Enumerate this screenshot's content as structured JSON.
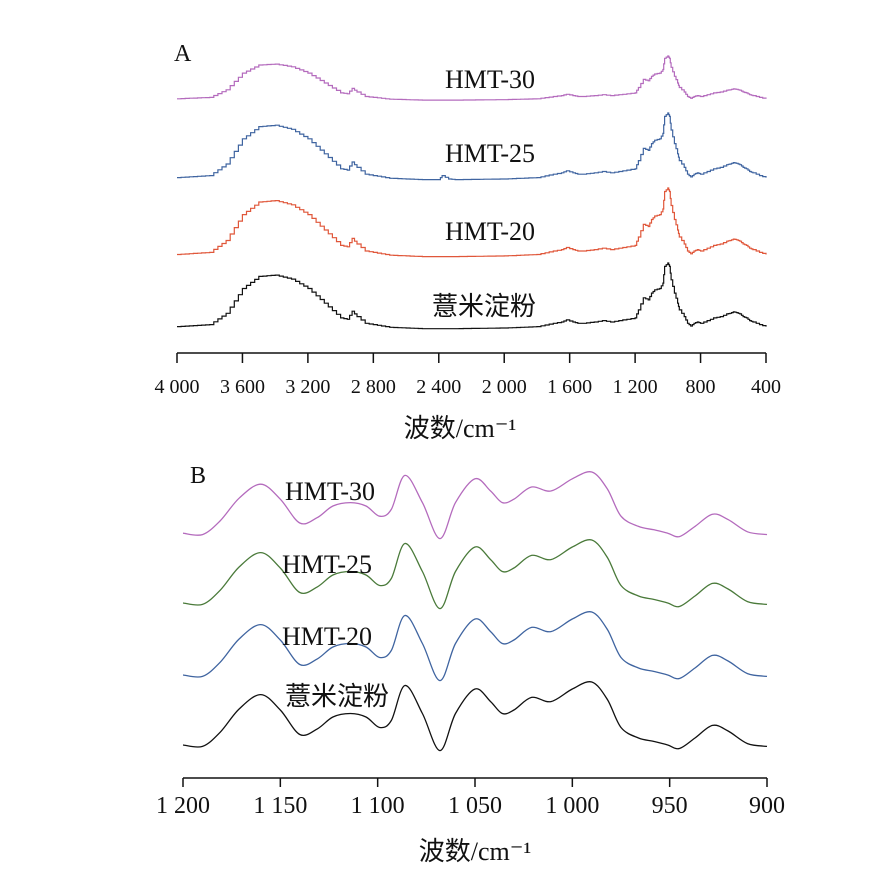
{
  "chart_data": [
    {
      "panel_label": "A",
      "type": "line",
      "xlabel": "波数/cm⁻¹",
      "xlim": [
        4000,
        400
      ],
      "ticks": [
        4000,
        3600,
        3200,
        2800,
        2400,
        2000,
        1600,
        1200,
        800,
        400
      ],
      "tick_labels": [
        "4 000",
        "3 600",
        "3 200",
        "2 800",
        "2 400",
        "2 000",
        "1 600",
        "1 200",
        "800",
        "400"
      ],
      "stepped_lines": true,
      "series": [
        {
          "name": "HMT-30",
          "color": "#b46bbd",
          "x": [
            4000,
            3800,
            3700,
            3600,
            3500,
            3400,
            3300,
            3200,
            3100,
            3000,
            2960,
            2930,
            2900,
            2850,
            2700,
            2500,
            2300,
            2000,
            1800,
            1700,
            1650,
            1620,
            1580,
            1550,
            1520,
            1450,
            1400,
            1350,
            1250,
            1200,
            1180,
            1150,
            1120,
            1100,
            1080,
            1050,
            1030,
            1020,
            1000,
            990,
            980,
            960,
            940,
            930,
            900,
            880,
            860,
            840,
            820,
            800,
            760,
            720,
            680,
            640,
            620,
            600,
            580,
            560,
            540,
            520,
            500,
            480,
            440,
            400
          ],
          "y": [
            0.05,
            0.08,
            0.25,
            0.62,
            0.8,
            0.82,
            0.76,
            0.62,
            0.4,
            0.18,
            0.16,
            0.28,
            0.2,
            0.1,
            0.04,
            0.02,
            0.02,
            0.03,
            0.05,
            0.1,
            0.12,
            0.15,
            0.12,
            0.1,
            0.1,
            0.12,
            0.14,
            0.12,
            0.16,
            0.18,
            0.3,
            0.48,
            0.45,
            0.55,
            0.6,
            0.62,
            0.7,
            0.95,
            1.0,
            0.95,
            0.75,
            0.55,
            0.4,
            0.3,
            0.2,
            0.1,
            0.06,
            0.1,
            0.12,
            0.1,
            0.14,
            0.18,
            0.2,
            0.24,
            0.25,
            0.27,
            0.26,
            0.24,
            0.2,
            0.18,
            0.14,
            0.12,
            0.08,
            0.05
          ]
        },
        {
          "name": "HMT-25",
          "color": "#3f64a0",
          "x": [
            4000,
            3800,
            3700,
            3600,
            3500,
            3400,
            3300,
            3200,
            3100,
            3000,
            2960,
            2930,
            2900,
            2850,
            2700,
            2500,
            2400,
            2380,
            2340,
            2300,
            2000,
            1800,
            1700,
            1650,
            1620,
            1580,
            1550,
            1520,
            1450,
            1400,
            1350,
            1250,
            1200,
            1180,
            1150,
            1120,
            1100,
            1080,
            1050,
            1030,
            1020,
            1000,
            990,
            980,
            960,
            940,
            930,
            900,
            880,
            860,
            840,
            820,
            800,
            760,
            720,
            680,
            640,
            620,
            600,
            580,
            560,
            540,
            520,
            500,
            480,
            440,
            400
          ],
          "y": [
            0.05,
            0.08,
            0.25,
            0.62,
            0.8,
            0.82,
            0.76,
            0.62,
            0.4,
            0.18,
            0.16,
            0.28,
            0.2,
            0.1,
            0.04,
            0.02,
            0.02,
            0.08,
            0.03,
            0.02,
            0.03,
            0.05,
            0.1,
            0.12,
            0.15,
            0.12,
            0.1,
            0.1,
            0.12,
            0.14,
            0.12,
            0.16,
            0.18,
            0.3,
            0.48,
            0.45,
            0.55,
            0.6,
            0.62,
            0.7,
            0.95,
            1.0,
            0.95,
            0.75,
            0.55,
            0.4,
            0.3,
            0.2,
            0.1,
            0.06,
            0.1,
            0.12,
            0.1,
            0.14,
            0.18,
            0.2,
            0.24,
            0.25,
            0.27,
            0.26,
            0.24,
            0.2,
            0.18,
            0.14,
            0.12,
            0.08,
            0.05
          ]
        },
        {
          "name": "HMT-20",
          "color": "#e0573a",
          "x": [
            4000,
            3800,
            3700,
            3600,
            3500,
            3400,
            3300,
            3200,
            3100,
            3000,
            2960,
            2930,
            2900,
            2850,
            2700,
            2500,
            2300,
            2000,
            1800,
            1700,
            1650,
            1620,
            1580,
            1550,
            1520,
            1450,
            1400,
            1350,
            1250,
            1200,
            1180,
            1150,
            1120,
            1100,
            1080,
            1050,
            1030,
            1020,
            1000,
            990,
            980,
            960,
            940,
            930,
            900,
            880,
            860,
            840,
            820,
            800,
            760,
            720,
            680,
            640,
            620,
            600,
            580,
            560,
            540,
            520,
            500,
            480,
            440,
            400
          ],
          "y": [
            0.05,
            0.08,
            0.25,
            0.62,
            0.8,
            0.82,
            0.76,
            0.62,
            0.4,
            0.18,
            0.16,
            0.28,
            0.2,
            0.1,
            0.04,
            0.02,
            0.02,
            0.03,
            0.05,
            0.1,
            0.12,
            0.15,
            0.12,
            0.1,
            0.1,
            0.12,
            0.14,
            0.12,
            0.16,
            0.18,
            0.3,
            0.48,
            0.45,
            0.55,
            0.6,
            0.62,
            0.7,
            0.95,
            1.0,
            0.95,
            0.75,
            0.55,
            0.4,
            0.3,
            0.2,
            0.1,
            0.06,
            0.1,
            0.12,
            0.1,
            0.14,
            0.18,
            0.2,
            0.24,
            0.25,
            0.27,
            0.26,
            0.24,
            0.2,
            0.18,
            0.14,
            0.12,
            0.08,
            0.05
          ]
        },
        {
          "name": "薏米淀粉",
          "color": "#111111",
          "x": [
            4000,
            3800,
            3700,
            3600,
            3500,
            3400,
            3300,
            3200,
            3100,
            3000,
            2960,
            2930,
            2900,
            2850,
            2700,
            2500,
            2300,
            2000,
            1800,
            1700,
            1650,
            1620,
            1580,
            1550,
            1520,
            1450,
            1400,
            1350,
            1250,
            1200,
            1180,
            1150,
            1120,
            1100,
            1080,
            1050,
            1030,
            1020,
            1000,
            990,
            980,
            960,
            940,
            930,
            900,
            880,
            860,
            840,
            820,
            800,
            760,
            720,
            680,
            640,
            620,
            600,
            580,
            560,
            540,
            520,
            500,
            480,
            440,
            400
          ],
          "y": [
            0.05,
            0.08,
            0.25,
            0.62,
            0.8,
            0.82,
            0.76,
            0.62,
            0.4,
            0.18,
            0.16,
            0.28,
            0.2,
            0.1,
            0.04,
            0.02,
            0.02,
            0.03,
            0.05,
            0.1,
            0.12,
            0.15,
            0.12,
            0.1,
            0.1,
            0.12,
            0.14,
            0.12,
            0.16,
            0.18,
            0.3,
            0.48,
            0.45,
            0.55,
            0.6,
            0.62,
            0.7,
            0.95,
            1.0,
            0.95,
            0.75,
            0.55,
            0.4,
            0.3,
            0.2,
            0.1,
            0.06,
            0.1,
            0.12,
            0.1,
            0.14,
            0.18,
            0.2,
            0.24,
            0.25,
            0.27,
            0.26,
            0.24,
            0.2,
            0.18,
            0.14,
            0.12,
            0.08,
            0.05
          ]
        }
      ]
    },
    {
      "panel_label": "B",
      "type": "line",
      "xlabel": "波数/cm⁻¹",
      "xlim": [
        1200,
        900
      ],
      "ticks": [
        1200,
        1150,
        1100,
        1050,
        1000,
        950,
        900
      ],
      "tick_labels": [
        "1 200",
        "1 150",
        "1 100",
        "1 050",
        "1 000",
        "950",
        "900"
      ],
      "series": [
        {
          "name": "HMT-30",
          "color": "#b46bbd",
          "x": [
            1200,
            1190,
            1181,
            1171,
            1160,
            1150,
            1140,
            1131,
            1123,
            1114,
            1106,
            1099,
            1093,
            1086,
            1077,
            1068,
            1060,
            1050,
            1042,
            1036,
            1030,
            1021,
            1011,
            1000,
            990,
            982,
            975,
            966,
            958,
            951,
            945,
            937,
            928,
            920,
            910,
            900
          ],
          "y": [
            0.1,
            0.08,
            0.28,
            0.62,
            0.82,
            0.6,
            0.25,
            0.33,
            0.5,
            0.55,
            0.5,
            0.35,
            0.45,
            0.95,
            0.55,
            0.02,
            0.55,
            0.9,
            0.72,
            0.55,
            0.6,
            0.78,
            0.72,
            0.9,
            1.0,
            0.75,
            0.35,
            0.2,
            0.15,
            0.1,
            0.05,
            0.2,
            0.38,
            0.3,
            0.12,
            0.08
          ]
        },
        {
          "name": "HMT-25",
          "color": "#4a7a3a",
          "x": [
            1200,
            1190,
            1181,
            1171,
            1160,
            1150,
            1140,
            1131,
            1123,
            1114,
            1106,
            1099,
            1093,
            1086,
            1077,
            1068,
            1060,
            1050,
            1042,
            1036,
            1030,
            1021,
            1011,
            1000,
            990,
            982,
            975,
            966,
            958,
            951,
            945,
            937,
            928,
            920,
            910,
            900
          ],
          "y": [
            0.1,
            0.08,
            0.28,
            0.62,
            0.82,
            0.6,
            0.25,
            0.33,
            0.5,
            0.55,
            0.5,
            0.35,
            0.45,
            0.95,
            0.55,
            0.02,
            0.55,
            0.9,
            0.72,
            0.55,
            0.6,
            0.78,
            0.72,
            0.9,
            1.0,
            0.75,
            0.35,
            0.2,
            0.15,
            0.1,
            0.05,
            0.2,
            0.38,
            0.3,
            0.12,
            0.08
          ]
        },
        {
          "name": "HMT-20",
          "color": "#3f64a0",
          "x": [
            1200,
            1190,
            1181,
            1171,
            1160,
            1150,
            1140,
            1131,
            1123,
            1114,
            1106,
            1099,
            1093,
            1086,
            1077,
            1068,
            1060,
            1050,
            1042,
            1036,
            1030,
            1021,
            1011,
            1000,
            990,
            982,
            975,
            966,
            958,
            951,
            945,
            937,
            928,
            920,
            910,
            900
          ],
          "y": [
            0.1,
            0.08,
            0.28,
            0.62,
            0.82,
            0.6,
            0.25,
            0.33,
            0.5,
            0.55,
            0.5,
            0.35,
            0.45,
            0.95,
            0.55,
            0.02,
            0.55,
            0.9,
            0.72,
            0.55,
            0.6,
            0.78,
            0.72,
            0.9,
            1.0,
            0.75,
            0.35,
            0.2,
            0.15,
            0.1,
            0.05,
            0.2,
            0.38,
            0.3,
            0.12,
            0.08
          ]
        },
        {
          "name": "薏米淀粉",
          "color": "#111111",
          "x": [
            1200,
            1190,
            1181,
            1171,
            1160,
            1150,
            1140,
            1131,
            1123,
            1114,
            1106,
            1099,
            1093,
            1086,
            1077,
            1068,
            1060,
            1050,
            1042,
            1036,
            1030,
            1021,
            1011,
            1000,
            990,
            982,
            975,
            966,
            958,
            951,
            945,
            937,
            928,
            920,
            910,
            900
          ],
          "y": [
            0.1,
            0.08,
            0.28,
            0.62,
            0.82,
            0.6,
            0.25,
            0.33,
            0.5,
            0.55,
            0.5,
            0.35,
            0.45,
            0.95,
            0.55,
            0.02,
            0.55,
            0.9,
            0.72,
            0.55,
            0.6,
            0.78,
            0.72,
            0.9,
            1.0,
            0.75,
            0.35,
            0.2,
            0.15,
            0.1,
            0.05,
            0.2,
            0.38,
            0.3,
            0.12,
            0.08
          ]
        }
      ]
    }
  ]
}
